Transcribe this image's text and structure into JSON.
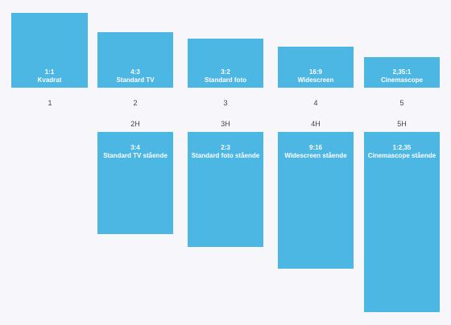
{
  "landscape": [
    {
      "ratio": "1:1",
      "name": "Kvadrat",
      "number": "1"
    },
    {
      "ratio": "4:3",
      "name": "Standard TV",
      "number": "2"
    },
    {
      "ratio": "3:2",
      "name": "Standard foto",
      "number": "3"
    },
    {
      "ratio": "16:9",
      "name": "Widescreen",
      "number": "4"
    },
    {
      "ratio": "2,35:1",
      "name": "Cinemascope",
      "number": "5"
    }
  ],
  "portrait": [
    {
      "number": "2H",
      "ratio": "3:4",
      "name": "Standard TV stående"
    },
    {
      "number": "3H",
      "ratio": "2:3",
      "name": "Standard foto stående"
    },
    {
      "number": "4H",
      "ratio": "9:16",
      "name": "Widescreen stående"
    },
    {
      "number": "5H",
      "ratio": "1:2,35",
      "name": "Cinemascope stående"
    }
  ],
  "colors": {
    "box": "#4db7e4",
    "background": "#f7f6fb",
    "text": "#ffffff"
  }
}
